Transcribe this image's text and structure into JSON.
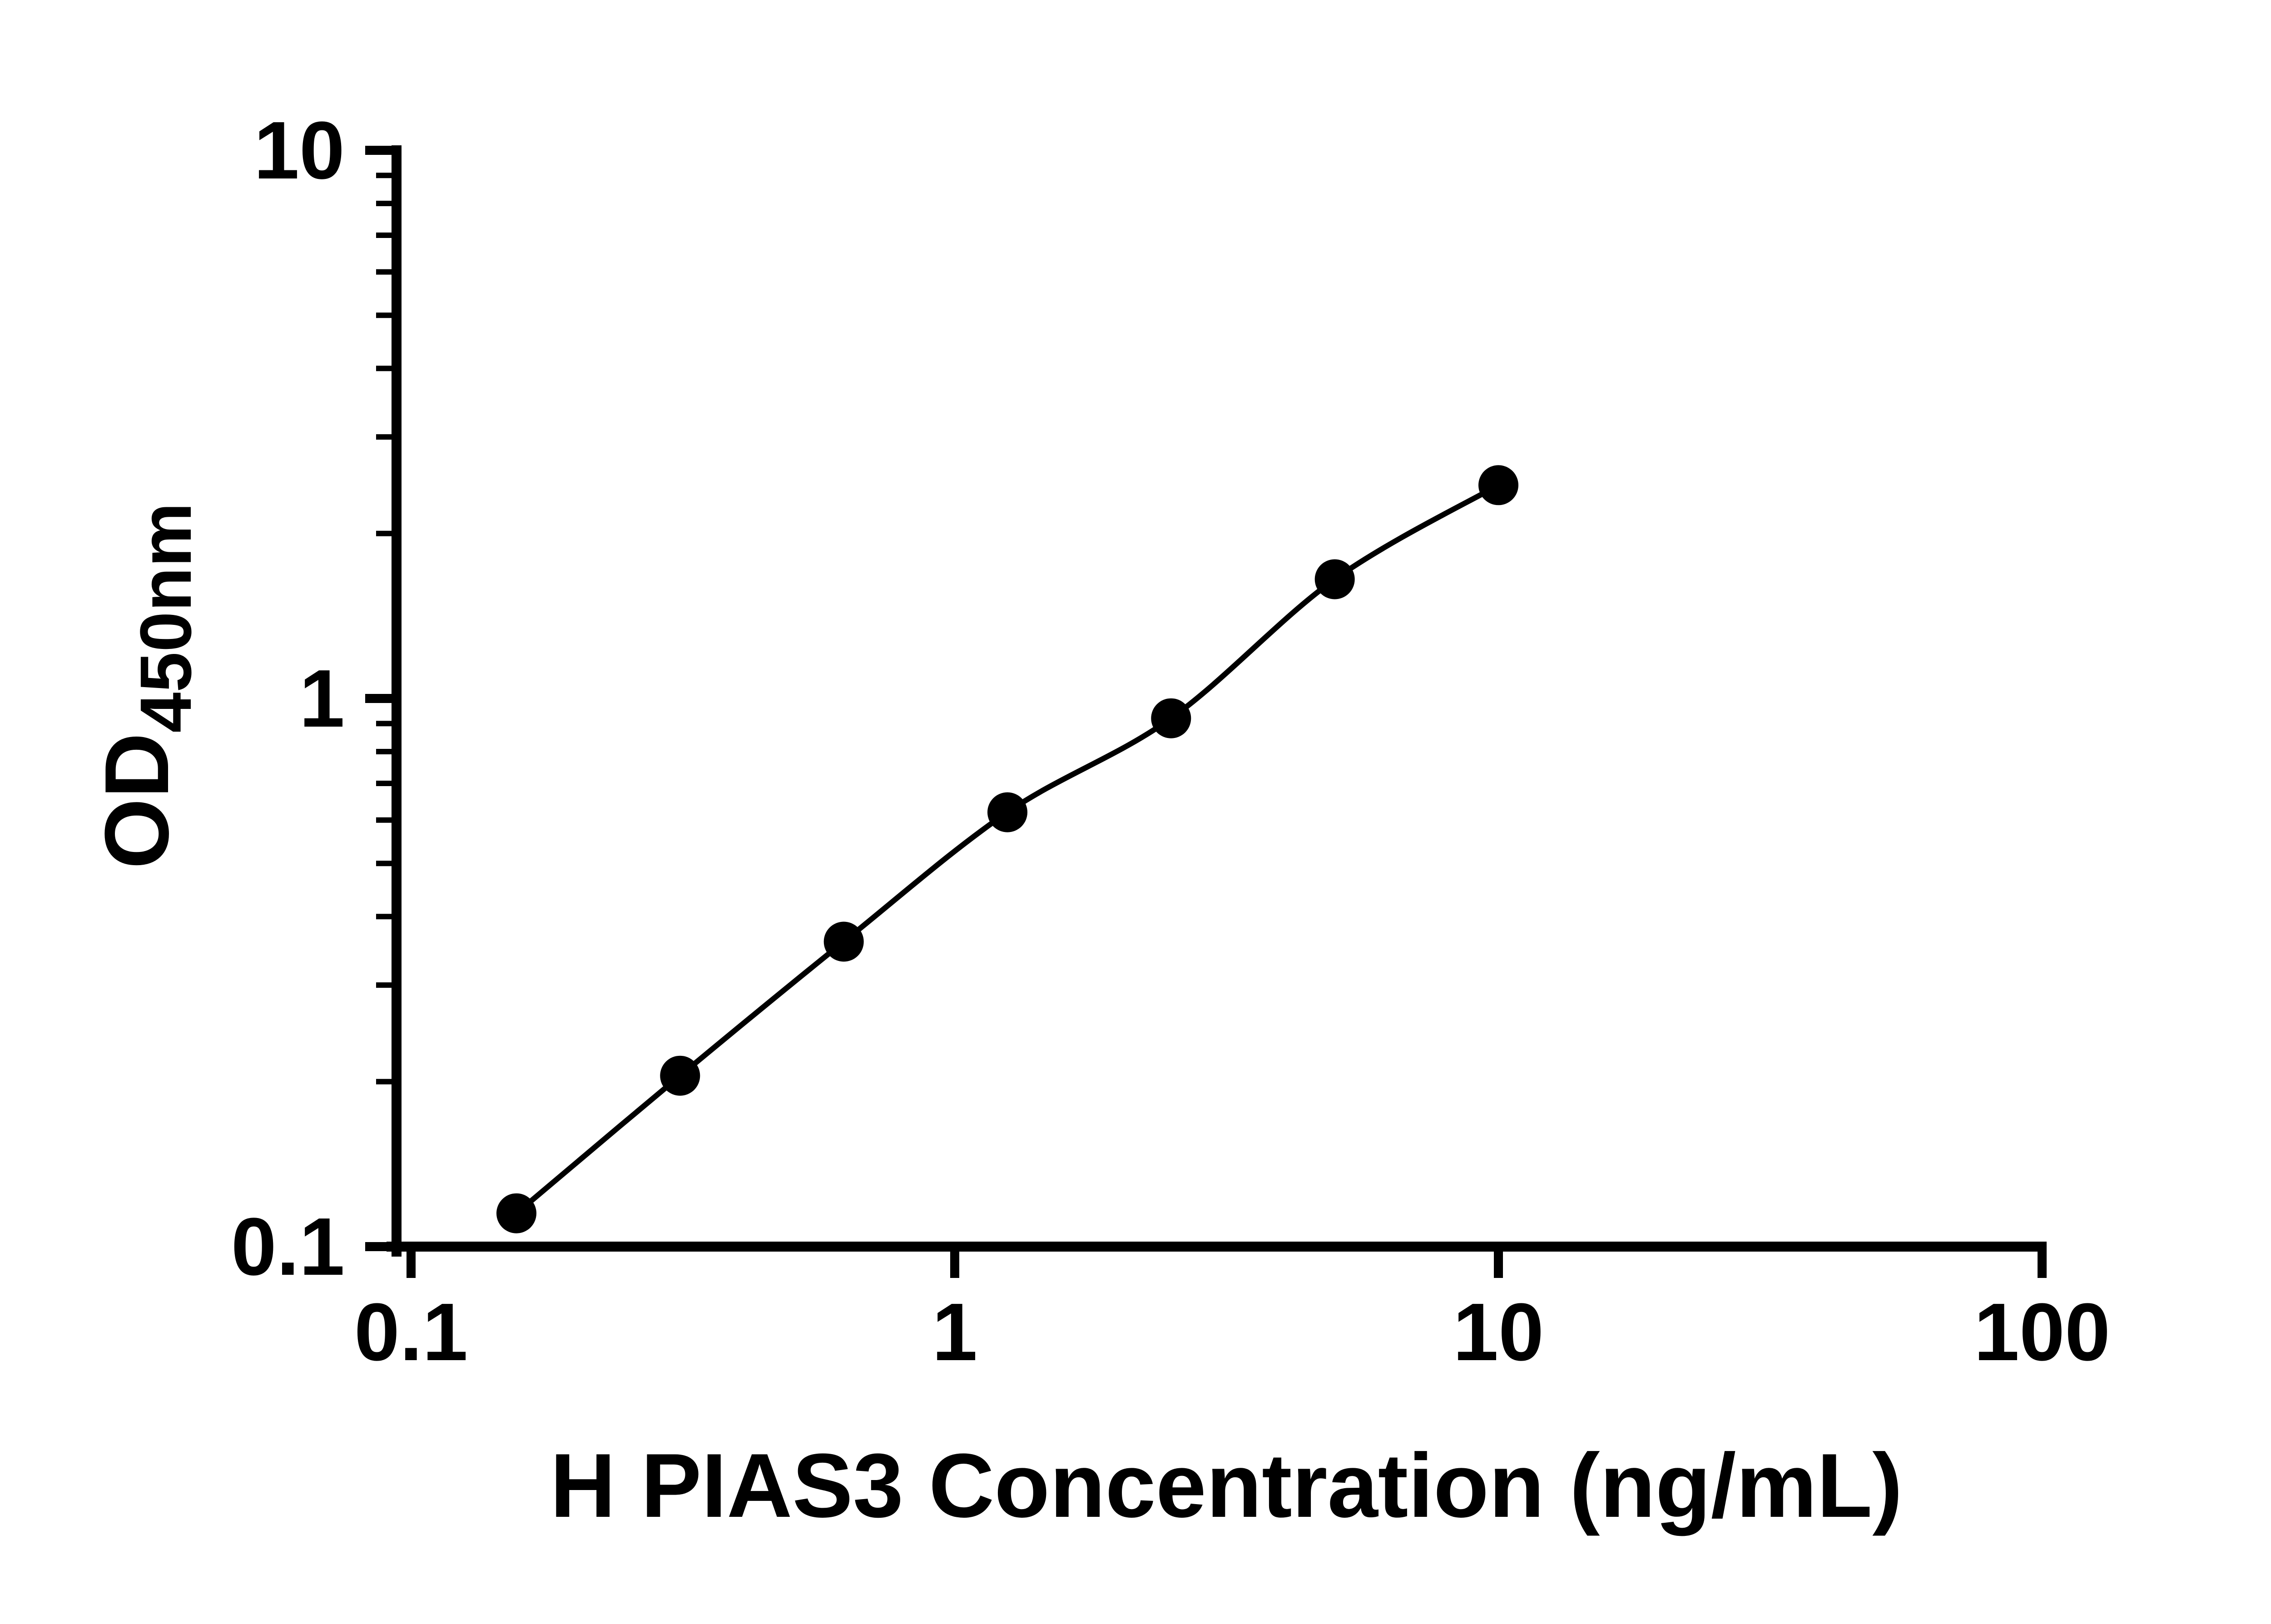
{
  "page": {
    "background_color": "#ffffff",
    "foreground_color": "#000000",
    "description": "ELISA standard curve log-log plot"
  },
  "chart_data": {
    "type": "line",
    "title": "",
    "xlabel": "H PIAS3 Concentration (ng/mL)",
    "ylabel": "OD",
    "ylabel_subscript": "450nm",
    "xscale": "log",
    "yscale": "log",
    "xlim": [
      0.1,
      100
    ],
    "ylim": [
      0.1,
      10
    ],
    "grid": false,
    "legend": "none",
    "x_ticks": [
      {
        "value": 0.1,
        "label": "0.1"
      },
      {
        "value": 1,
        "label": "1"
      },
      {
        "value": 10,
        "label": "10"
      },
      {
        "value": 100,
        "label": "100"
      }
    ],
    "y_ticks": [
      {
        "value": 0.1,
        "label": "0.1"
      },
      {
        "value": 1,
        "label": "1"
      },
      {
        "value": 10,
        "label": "10"
      }
    ],
    "x_minor_ticks": [],
    "y_minor_ticks": [
      0.2,
      0.3,
      0.4,
      0.5,
      0.6,
      0.7,
      0.8,
      0.9,
      2,
      3,
      4,
      5,
      6,
      7,
      8,
      9
    ],
    "series": [
      {
        "x": [
          0.15625,
          0.3125,
          0.625,
          1.25,
          2.5,
          5,
          10
        ],
        "y": [
          0.115,
          0.205,
          0.36,
          0.62,
          0.92,
          1.65,
          2.45
        ],
        "marker": "filled-circle",
        "line": "smooth",
        "color": "#000000"
      }
    ]
  }
}
